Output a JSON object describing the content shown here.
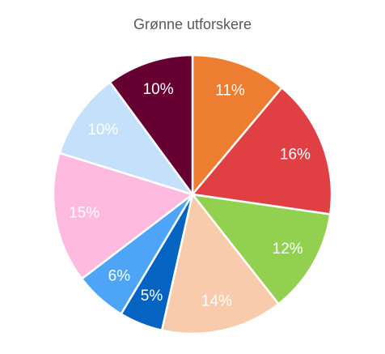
{
  "chart_data": {
    "type": "pie",
    "title": "Grønne utforskere",
    "values": [
      11,
      16,
      12,
      14,
      5,
      6,
      15,
      10,
      10
    ],
    "value_labels": [
      "11%",
      "16%",
      "12%",
      "14%",
      "5%",
      "6%",
      "15%",
      "10%",
      "10%"
    ],
    "colors": [
      "#ed7d31",
      "#e04044",
      "#92d050",
      "#f8cbad",
      "#0563c1",
      "#4ea5f7",
      "#ffbadf",
      "#c5e0fb",
      "#660033"
    ]
  }
}
